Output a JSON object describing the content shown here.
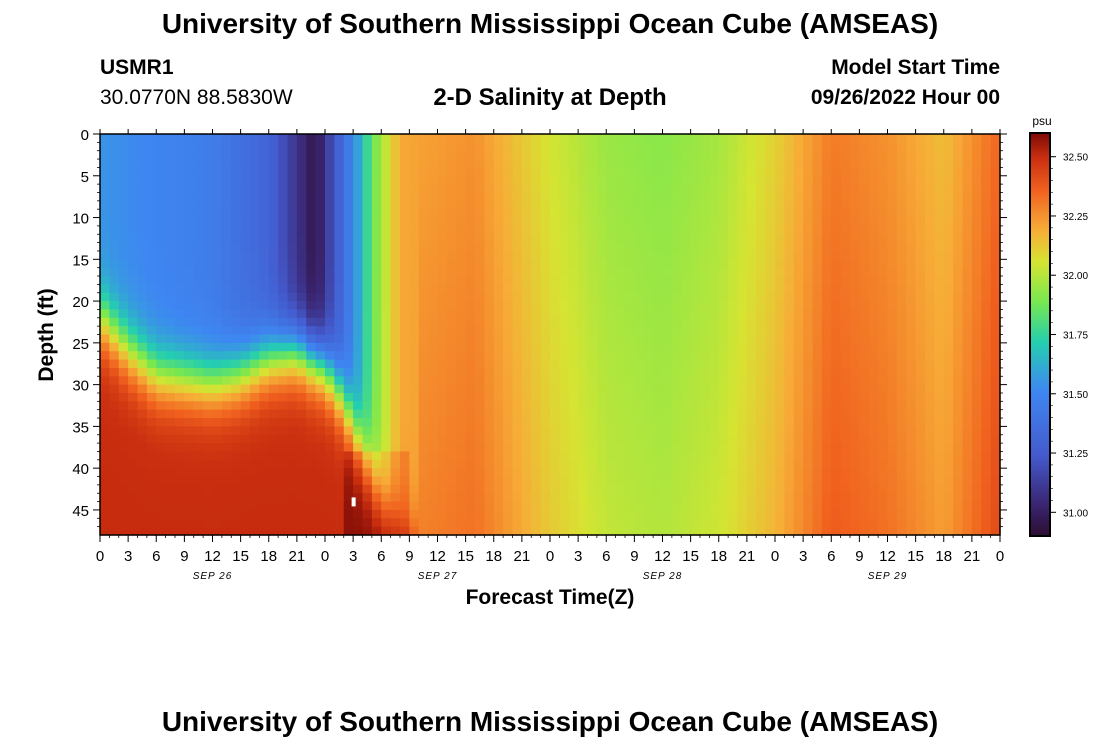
{
  "header": {
    "title": "University of Southern Mississippi Ocean Cube (AMSEAS)",
    "station_id": "USMR1",
    "station_coords": "30.0770N  88.5830W",
    "plot_title": "2-D Salinity at Depth",
    "start_label": "Model Start Time",
    "start_value": "09/26/2022 Hour 00"
  },
  "footer": {
    "title": "University of Southern Mississippi Ocean Cube (AMSEAS)"
  },
  "chart_data": {
    "type": "heatmap",
    "title": "2-D Salinity at Depth",
    "xlabel": "Forecast Time(Z)",
    "ylabel": "Depth (ft)",
    "units": "psu",
    "x_range_hours": [
      0,
      96
    ],
    "ylim": [
      0,
      48
    ],
    "x_tick_labels": [
      "0",
      "3",
      "6",
      "9",
      "12",
      "15",
      "18",
      "21",
      "0",
      "3",
      "6",
      "9",
      "12",
      "15",
      "18",
      "21",
      "0",
      "3",
      "6",
      "9",
      "12",
      "15",
      "18",
      "21",
      "0",
      "3",
      "6",
      "9",
      "12",
      "15",
      "18",
      "21",
      "0"
    ],
    "y_ticks": [
      0,
      5,
      10,
      15,
      20,
      25,
      30,
      35,
      40,
      45
    ],
    "y_tick_labels": [
      "0",
      "5",
      "10",
      "15",
      "20",
      "25",
      "30",
      "35",
      "40",
      "45"
    ],
    "date_labels": [
      {
        "hour": 12,
        "label": "SEP 26"
      },
      {
        "hour": 36,
        "label": "SEP 27"
      },
      {
        "hour": 60,
        "label": "SEP 28"
      },
      {
        "hour": 84,
        "label": "SEP 29"
      }
    ],
    "colorbar": {
      "min": 30.9,
      "max": 32.6,
      "ticks": [
        31.0,
        31.25,
        31.5,
        31.75,
        32.0,
        32.25,
        32.5
      ],
      "tick_labels": [
        "31.00",
        "31.25",
        "31.50",
        "31.75",
        "32.00",
        "32.25",
        "32.50"
      ]
    },
    "surface_salinity_by_hour": [
      [
        0,
        31.55
      ],
      [
        12,
        31.45
      ],
      [
        18,
        31.3
      ],
      [
        23,
        30.95
      ],
      [
        27,
        31.5
      ],
      [
        29,
        31.85
      ],
      [
        32,
        32.2
      ],
      [
        40,
        32.25
      ],
      [
        44,
        32.15
      ],
      [
        48,
        32.05
      ],
      [
        54,
        31.95
      ],
      [
        60,
        31.92
      ],
      [
        66,
        31.97
      ],
      [
        72,
        32.1
      ],
      [
        78,
        32.3
      ],
      [
        84,
        32.25
      ],
      [
        90,
        32.15
      ],
      [
        96,
        32.35
      ]
    ],
    "halocline_depth_ft_by_hour": [
      [
        0,
        22
      ],
      [
        3,
        26
      ],
      [
        6,
        29
      ],
      [
        12,
        30
      ],
      [
        15,
        29
      ],
      [
        18,
        27
      ],
      [
        21,
        26
      ],
      [
        24,
        28
      ],
      [
        26,
        32
      ],
      [
        28,
        38
      ],
      [
        30,
        44
      ],
      [
        33,
        48
      ]
    ],
    "bottom_salinity_psu": 32.5
  }
}
